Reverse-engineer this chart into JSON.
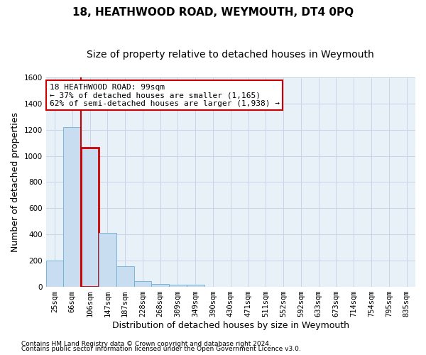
{
  "title": "18, HEATHWOOD ROAD, WEYMOUTH, DT4 0PQ",
  "subtitle": "Size of property relative to detached houses in Weymouth",
  "xlabel": "Distribution of detached houses by size in Weymouth",
  "ylabel": "Number of detached properties",
  "categories": [
    "25sqm",
    "66sqm",
    "106sqm",
    "147sqm",
    "187sqm",
    "228sqm",
    "268sqm",
    "309sqm",
    "349sqm",
    "390sqm",
    "430sqm",
    "471sqm",
    "511sqm",
    "552sqm",
    "592sqm",
    "633sqm",
    "673sqm",
    "714sqm",
    "754sqm",
    "795sqm",
    "835sqm"
  ],
  "values": [
    200,
    1220,
    1060,
    410,
    160,
    45,
    20,
    15,
    15,
    0,
    0,
    0,
    0,
    0,
    0,
    0,
    0,
    0,
    0,
    0,
    0
  ],
  "bar_color": "#c9ddf0",
  "bar_edge_color": "#6aaed6",
  "highlight_bar_index": 2,
  "highlight_bar_edge_color": "#cc0000",
  "ylim": [
    0,
    1600
  ],
  "yticks": [
    0,
    200,
    400,
    600,
    800,
    1000,
    1200,
    1400,
    1600
  ],
  "annotation_title": "18 HEATHWOOD ROAD: 99sqm",
  "annotation_line1": "← 37% of detached houses are smaller (1,165)",
  "annotation_line2": "62% of semi-detached houses are larger (1,938) →",
  "annotation_box_color": "#ffffff",
  "annotation_box_edge": "#cc0000",
  "footer1": "Contains HM Land Registry data © Crown copyright and database right 2024.",
  "footer2": "Contains public sector information licensed under the Open Government Licence v3.0.",
  "background_color": "#ffffff",
  "plot_bg_color": "#e8f0f8",
  "grid_color": "#c8d4e8",
  "title_fontsize": 11,
  "subtitle_fontsize": 10,
  "axis_label_fontsize": 9,
  "tick_fontsize": 7.5,
  "annotation_fontsize": 8,
  "footer_fontsize": 6.5
}
